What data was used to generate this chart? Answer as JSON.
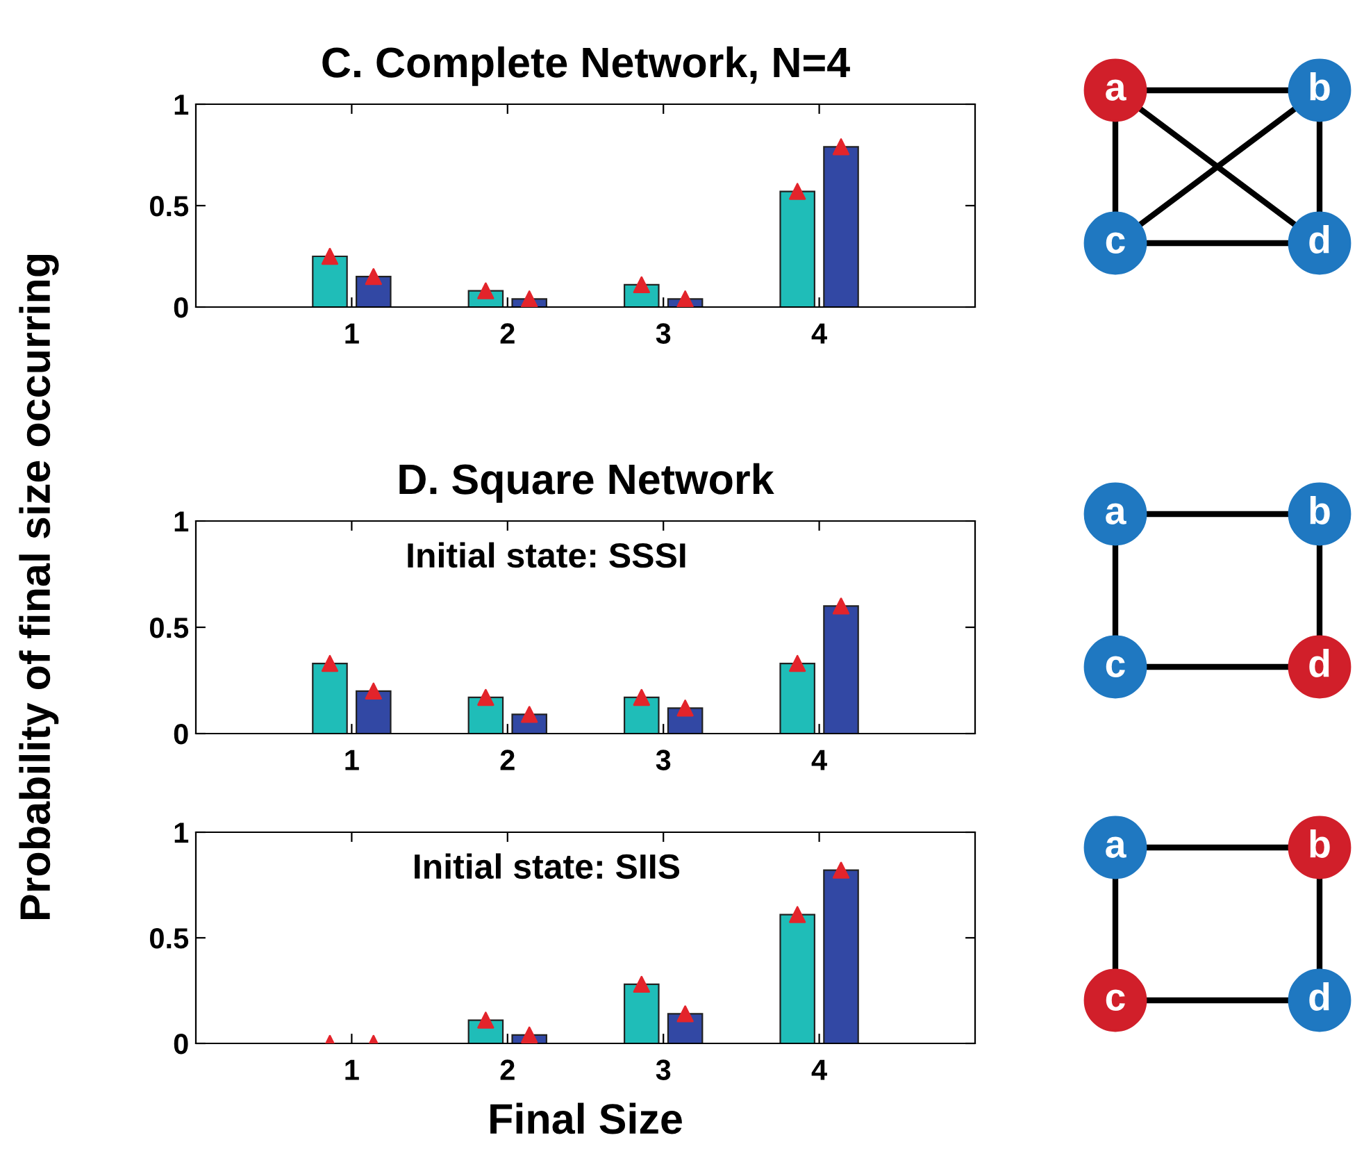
{
  "chart_data": [
    {
      "type": "bar",
      "title": "C. Complete Network, N=4",
      "categories": [
        "1",
        "2",
        "3",
        "4"
      ],
      "ylim": [
        0,
        1
      ],
      "yticks": [
        0,
        0.5,
        1
      ],
      "grid": false,
      "annotations": [
        "a",
        "b",
        "c",
        "d"
      ],
      "series": [
        {
          "color": "#1fbdb8",
          "values": [
            0.25,
            0.08,
            0.11,
            0.57
          ]
        },
        {
          "color": "#3248a4",
          "values": [
            0.15,
            0.04,
            0.04,
            0.79
          ]
        },
        {
          "type": "scatter",
          "color": "#e3242b",
          "marker": "triangle",
          "x": [
            "1",
            "2",
            "3",
            "4"
          ],
          "values": [
            0.25,
            0.08,
            0.11,
            0.57
          ]
        },
        {
          "type": "scatter",
          "color": "#e3242b",
          "marker": "triangle",
          "x": [
            "1",
            "2",
            "3",
            "4"
          ],
          "values": [
            0.15,
            0.04,
            0.04,
            0.79
          ]
        }
      ]
    },
    {
      "type": "bar",
      "title": "D. Square Network",
      "ylabel": "Probability of final size occurring",
      "categories": [
        "1",
        "2",
        "3",
        "4"
      ],
      "ylim": [
        0,
        1
      ],
      "yticks": [
        0,
        0.5,
        1
      ],
      "grid": false,
      "annotations": [
        "Initial state: SSSI",
        "a",
        "b",
        "c",
        "d"
      ],
      "series": [
        {
          "color": "#1fbdb8",
          "values": [
            0.33,
            0.17,
            0.17,
            0.33
          ]
        },
        {
          "color": "#3248a4",
          "values": [
            0.2,
            0.09,
            0.12,
            0.6
          ]
        },
        {
          "type": "scatter",
          "color": "#e3242b",
          "marker": "triangle",
          "x": [
            "1",
            "2",
            "3",
            "4"
          ],
          "values": [
            0.33,
            0.17,
            0.17,
            0.33
          ]
        },
        {
          "type": "scatter",
          "color": "#e3242b",
          "marker": "triangle",
          "x": [
            "1",
            "2",
            "3",
            "4"
          ],
          "values": [
            0.2,
            0.09,
            0.12,
            0.6
          ]
        }
      ]
    },
    {
      "type": "bar",
      "xlabel": "Final Size",
      "categories": [
        "1",
        "2",
        "3",
        "4"
      ],
      "ylim": [
        0,
        1
      ],
      "yticks": [
        0,
        0.5,
        1
      ],
      "grid": false,
      "annotations": [
        "Initial state: SIIS",
        "a",
        "b",
        "c",
        "d"
      ],
      "series": [
        {
          "color": "#1fbdb8",
          "values": [
            null,
            0.11,
            0.28,
            0.61
          ]
        },
        {
          "color": "#3248a4",
          "values": [
            null,
            0.04,
            0.14,
            0.82
          ]
        },
        {
          "type": "scatter",
          "color": "#e3242b",
          "marker": "triangle",
          "x": [
            "1",
            "2",
            "3",
            "4"
          ],
          "values": [
            0,
            0.11,
            0.28,
            0.61
          ]
        },
        {
          "type": "scatter",
          "color": "#e3242b",
          "marker": "triangle",
          "x": [
            "1",
            "2",
            "3",
            "4"
          ],
          "values": [
            0,
            0.04,
            0.14,
            0.82
          ]
        }
      ]
    }
  ]
}
